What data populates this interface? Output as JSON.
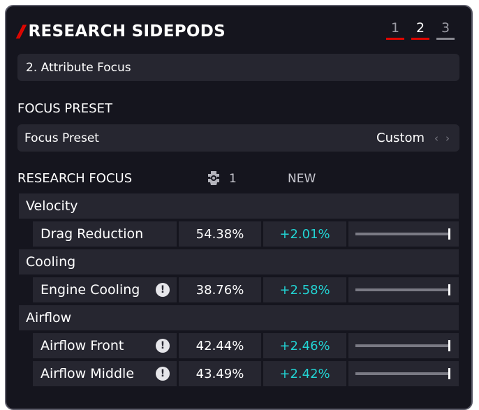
{
  "header": {
    "title": "RESEARCH SIDEPODS",
    "slash": "//"
  },
  "steps": [
    {
      "label": "1"
    },
    {
      "label": "2"
    },
    {
      "label": "3"
    }
  ],
  "subheader": {
    "label": "2. Attribute Focus"
  },
  "focus_preset": {
    "section_title": "FOCUS PRESET",
    "label": "Focus Preset",
    "value": "Custom"
  },
  "research_focus": {
    "section_title": "RESEARCH FOCUS",
    "car_number": "1",
    "new_label": "NEW"
  },
  "groups": [
    {
      "name": "Velocity",
      "items": [
        {
          "name": "Drag Reduction",
          "value": "54.38%",
          "delta": "+2.01%",
          "warning": false,
          "level": 1.0
        }
      ]
    },
    {
      "name": "Cooling",
      "items": [
        {
          "name": "Engine Cooling",
          "value": "38.76%",
          "delta": "+2.58%",
          "warning": true,
          "level": 1.0
        }
      ]
    },
    {
      "name": "Airflow",
      "items": [
        {
          "name": "Airflow Front",
          "value": "42.44%",
          "delta": "+2.46%",
          "warning": true,
          "level": 1.0
        },
        {
          "name": "Airflow Middle",
          "value": "43.49%",
          "delta": "+2.42%",
          "warning": true,
          "level": 1.0
        }
      ]
    }
  ],
  "colors": {
    "accent": "#e10600",
    "delta": "#22d3d3",
    "panel": "#15151e",
    "row": "#262630"
  },
  "icons": {
    "warning": "exclamation-circle-icon",
    "car": "car-icon",
    "prev": "chevron-left-icon",
    "next": "chevron-right-icon"
  },
  "symbols": {
    "warning": "!",
    "prev": "‹",
    "next": "›"
  }
}
